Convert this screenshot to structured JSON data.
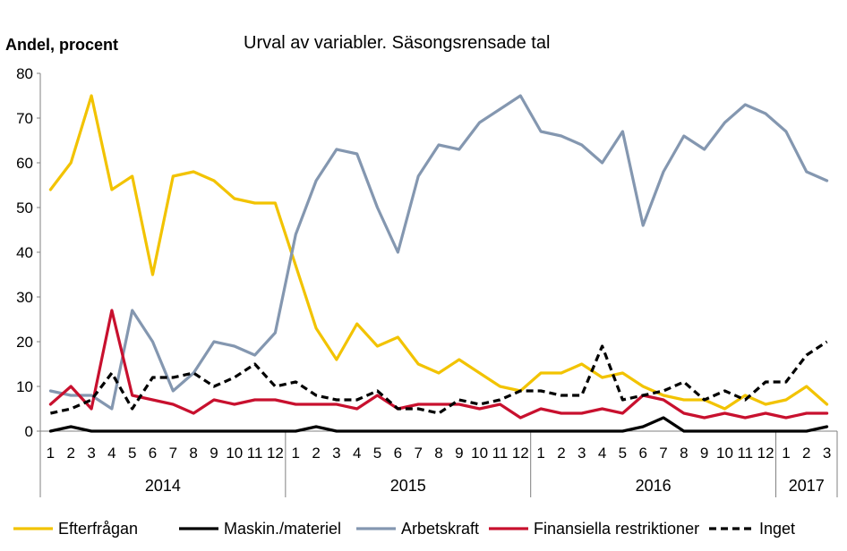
{
  "chart_data": {
    "type": "line",
    "title": "Urval av variabler. Säsongsrensade tal",
    "ylabel": "Andel, procent",
    "xlabel": "",
    "ylim": [
      0,
      80
    ],
    "yticks": [
      0,
      10,
      20,
      30,
      40,
      50,
      60,
      70,
      80
    ],
    "grid": false,
    "legend_position": "bottom",
    "x": [
      "1",
      "2",
      "3",
      "4",
      "5",
      "6",
      "7",
      "8",
      "9",
      "10",
      "11",
      "12",
      "1",
      "2",
      "3",
      "4",
      "5",
      "6",
      "7",
      "8",
      "9",
      "10",
      "11",
      "12",
      "1",
      "2",
      "3",
      "4",
      "5",
      "6",
      "7",
      "8",
      "9",
      "10",
      "11",
      "12",
      "1",
      "2",
      "3"
    ],
    "years": [
      {
        "label": "2014",
        "months": 12
      },
      {
        "label": "2015",
        "months": 12
      },
      {
        "label": "2016",
        "months": 12
      },
      {
        "label": "2017",
        "months": 3
      }
    ],
    "series": [
      {
        "name": "Efterfrågan",
        "color": "#f2c300",
        "dash": "none",
        "values": [
          54,
          60,
          75,
          54,
          57,
          35,
          57,
          58,
          56,
          52,
          51,
          51,
          37,
          23,
          16,
          24,
          19,
          21,
          15,
          13,
          16,
          13,
          10,
          9,
          13,
          13,
          15,
          12,
          13,
          10,
          8,
          7,
          7,
          5,
          8,
          6,
          7,
          10,
          6
        ]
      },
      {
        "name": "Maskin./materiel",
        "color": "#000000",
        "dash": "none",
        "values": [
          0,
          1,
          0,
          0,
          0,
          0,
          0,
          0,
          0,
          0,
          0,
          0,
          0,
          1,
          0,
          0,
          0,
          0,
          0,
          0,
          0,
          0,
          0,
          0,
          0,
          0,
          0,
          0,
          0,
          1,
          3,
          0,
          0,
          0,
          0,
          0,
          0,
          0,
          1
        ]
      },
      {
        "name": "Arbetskraft",
        "color": "#8497b0",
        "dash": "none",
        "values": [
          9,
          8,
          8,
          5,
          27,
          20,
          9,
          13,
          20,
          19,
          17,
          22,
          44,
          56,
          63,
          62,
          50,
          40,
          57,
          64,
          63,
          69,
          72,
          75,
          67,
          66,
          64,
          60,
          67,
          46,
          58,
          66,
          63,
          69,
          73,
          71,
          67,
          58,
          56
        ]
      },
      {
        "name": "Finansiella restriktioner",
        "color": "#c8102e",
        "dash": "none",
        "values": [
          6,
          10,
          5,
          27,
          8,
          7,
          6,
          4,
          7,
          6,
          7,
          7,
          6,
          6,
          6,
          5,
          8,
          5,
          6,
          6,
          6,
          5,
          6,
          3,
          5,
          4,
          4,
          5,
          4,
          8,
          7,
          4,
          3,
          4,
          3,
          4,
          3,
          4,
          4
        ]
      },
      {
        "name": "Inget",
        "color": "#000000",
        "dash": "8,5",
        "values": [
          4,
          5,
          7,
          13,
          5,
          12,
          12,
          13,
          10,
          12,
          15,
          10,
          11,
          8,
          7,
          7,
          9,
          5,
          5,
          4,
          7,
          6,
          7,
          9,
          9,
          8,
          8,
          19,
          7,
          8,
          9,
          11,
          7,
          9,
          7,
          11,
          11,
          17,
          20
        ]
      }
    ]
  }
}
